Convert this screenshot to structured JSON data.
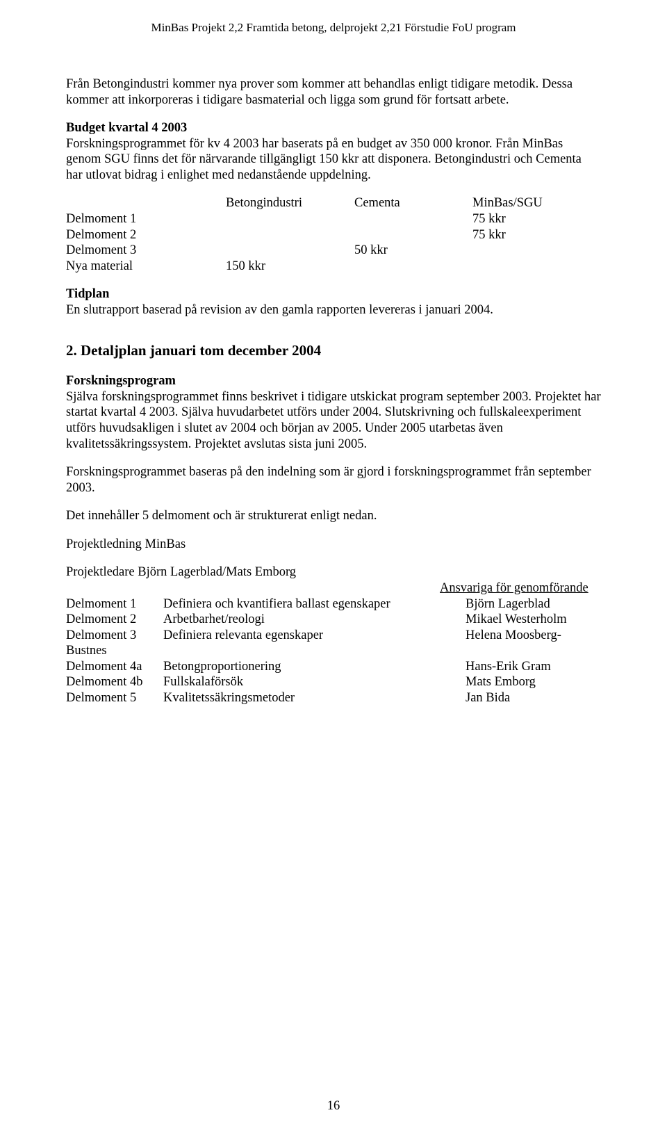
{
  "header": "MinBas Projekt 2,2 Framtida betong, delprojekt 2,21 Förstudie FoU program",
  "para1": "Från Betongindustri kommer nya prover som kommer att behandlas enligt tidigare metodik. Dessa kommer att inkorporeras i tidigare basmaterial och ligga som grund för fortsatt arbete.",
  "budget_title": "Budget kvartal 4 2003",
  "para2": "Forskningsprogrammet för kv 4 2003 har baserats på en budget av 350 000 kronor. Från MinBas genom SGU finns det för närvarande tillgängligt 150 kkr att disponera. Betongindustri och Cementa har utlovat bidrag i enlighet med nedanstående uppdelning.",
  "budget_table": {
    "col_headers": [
      "",
      "Betongindustri",
      "Cementa",
      "MinBas/SGU"
    ],
    "rows": [
      {
        "label": "Delmoment 1",
        "c2": "",
        "c3": "",
        "c4": "75 kkr"
      },
      {
        "label": "Delmoment 2",
        "c2": "",
        "c3": "",
        "c4": "75 kkr"
      },
      {
        "label": "Delmoment 3",
        "c2": "",
        "c3": "50 kkr",
        "c4": ""
      },
      {
        "label": "Nya material",
        "c2": "150 kkr",
        "c3": "",
        "c4": ""
      }
    ]
  },
  "tidplan_title": "Tidplan",
  "para3": "En slutrapport baserad på revision av den gamla rapporten levereras i januari 2004.",
  "section2_title": "2. Detaljplan januari tom december 2004",
  "forsknings_title": "Forskningsprogram",
  "para4": "Själva forskningsprogrammet finns beskrivet i tidigare utskickat program september 2003. Projektet har startat kvartal 4 2003. Själva huvudarbetet utförs under 2004. Slutskrivning och fullskaleexperiment utförs huvudsakligen i slutet av 2004 och början av 2005. Under 2005 utarbetas även kvalitetssäkringssystem. Projektet avslutas sista juni 2005.",
  "para5": "Forskningsprogrammet baseras på den indelning som är gjord i forskningsprogrammet från september 2003.",
  "para6": "Det innehåller 5 delmoment och är strukturerat enligt nedan.",
  "projektledning": "Projektledning MinBas",
  "projektledare": "Projektledare Björn Lagerblad/Mats Emborg",
  "ansvariga_title": "Ansvariga för genomförande",
  "delmoments": [
    {
      "num": "Delmoment 1",
      "desc": "Definiera och kvantifiera ballast egenskaper",
      "who": "Björn Lagerblad"
    },
    {
      "num": "Delmoment 2",
      "desc": "Arbetbarhet/reologi",
      "who": "Mikael Westerholm"
    },
    {
      "num": "Delmoment 3",
      "desc": "Definiera relevanta egenskaper",
      "who": "Helena Moosberg-"
    },
    {
      "num": "Bustnes",
      "desc": "",
      "who": ""
    },
    {
      "num": "Delmoment 4a",
      "desc": "Betongproportionering",
      "who": "Hans-Erik Gram"
    },
    {
      "num": "Delmoment 4b",
      "desc": "Fullskalaförsök",
      "who": "Mats Emborg"
    },
    {
      "num": "Delmoment 5",
      "desc": "Kvalitetssäkringsmetoder",
      "who": "Jan Bida"
    }
  ],
  "page_num": "16"
}
